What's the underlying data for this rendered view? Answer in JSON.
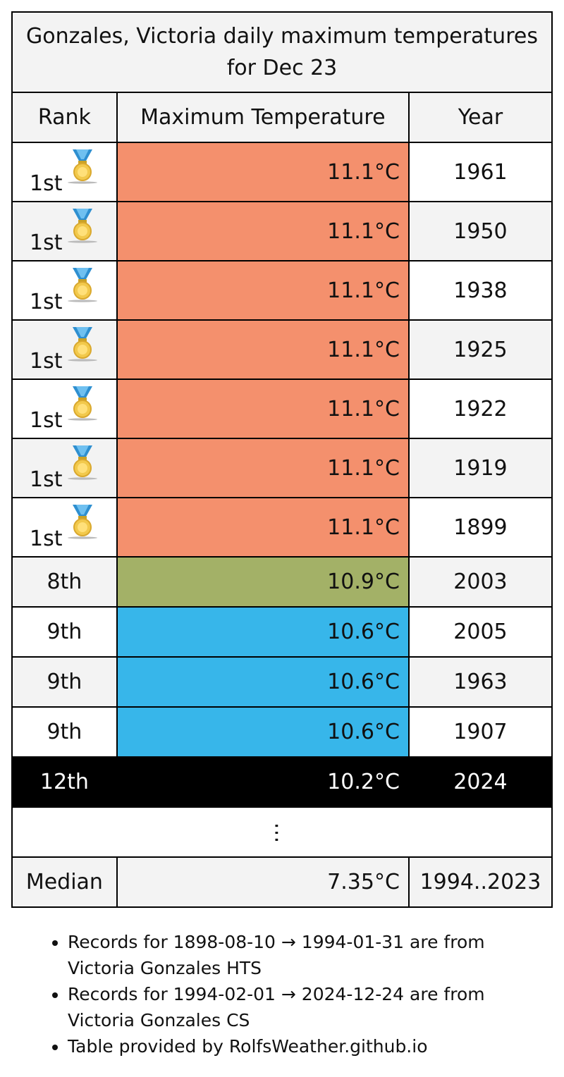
{
  "table": {
    "caption": "Gonzales, Victoria daily maximum temperatures for Dec 23",
    "headers": {
      "rank": "Rank",
      "temp": "Maximum Temperature",
      "year": "Year"
    },
    "rows": [
      {
        "rank": "1st",
        "temp": "11.1°C",
        "year": "1961",
        "color": "#f4906d",
        "medal": "gold-medal-icon"
      },
      {
        "rank": "1st",
        "temp": "11.1°C",
        "year": "1950",
        "color": "#f4906d",
        "medal": "gold-medal-icon"
      },
      {
        "rank": "1st",
        "temp": "11.1°C",
        "year": "1938",
        "color": "#f4906d",
        "medal": "gold-medal-icon"
      },
      {
        "rank": "1st",
        "temp": "11.1°C",
        "year": "1925",
        "color": "#f4906d",
        "medal": "gold-medal-icon"
      },
      {
        "rank": "1st",
        "temp": "11.1°C",
        "year": "1922",
        "color": "#f4906d",
        "medal": "gold-medal-icon"
      },
      {
        "rank": "1st",
        "temp": "11.1°C",
        "year": "1919",
        "color": "#f4906d",
        "medal": "gold-medal-icon"
      },
      {
        "rank": "1st",
        "temp": "11.1°C",
        "year": "1899",
        "color": "#f4906d",
        "medal": "gold-medal-icon"
      },
      {
        "rank": "8th",
        "temp": "10.9°C",
        "year": "2003",
        "color": "#a3b167"
      },
      {
        "rank": "9th",
        "temp": "10.6°C",
        "year": "2005",
        "color": "#37b6ea"
      },
      {
        "rank": "9th",
        "temp": "10.6°C",
        "year": "1963",
        "color": "#37b6ea"
      },
      {
        "rank": "9th",
        "temp": "10.6°C",
        "year": "1907",
        "color": "#37b6ea"
      }
    ],
    "current": {
      "rank": "12th",
      "temp": "10.2°C",
      "year": "2024"
    },
    "ellipsis": "…",
    "median": {
      "label": "Median",
      "temp": "7.35°C",
      "years": "1994..2023"
    }
  },
  "notes": [
    "Records for 1898-08-10 → 1994-01-31 are from Victoria Gonzales HTS",
    "Records for 1994-02-01 → 2024-12-24 are from Victoria Gonzales CS",
    "Table provided by RolfsWeather.github.io"
  ],
  "colors": {
    "header_bg": "#f3f3f3",
    "record_high": "#f4906d",
    "near_record": "#a3b167",
    "above_normal": "#37b6ea",
    "current_row_bg": "#000000"
  }
}
